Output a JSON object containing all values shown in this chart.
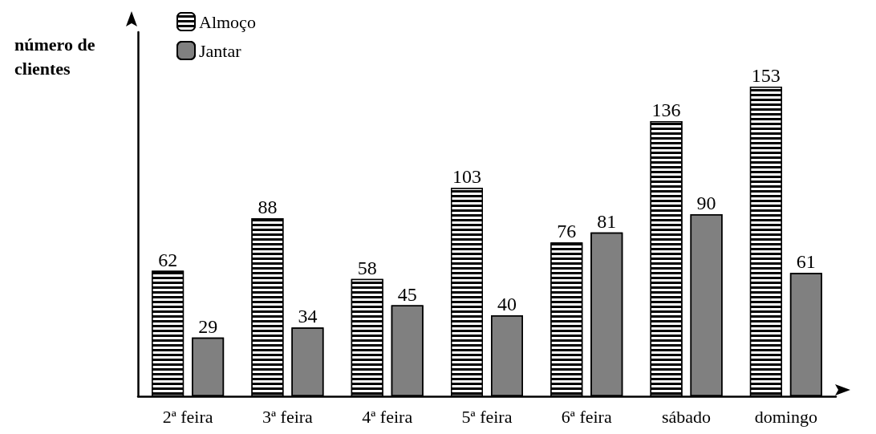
{
  "chart_data": {
    "type": "bar",
    "ylabel": "número de\nclientes",
    "categories": [
      "2ª feira",
      "3ª feira",
      "4ª feira",
      "5ª feira",
      "6ª feira",
      "sábado",
      "domingo"
    ],
    "series": [
      {
        "name": "Almoço",
        "color": "#000000",
        "values": [
          62,
          88,
          58,
          103,
          76,
          136,
          153
        ]
      },
      {
        "name": "Jantar",
        "color": "#808080",
        "values": [
          29,
          34,
          45,
          40,
          81,
          90,
          61
        ]
      }
    ],
    "data_labels": true,
    "tick_labels": "x",
    "grid": false,
    "legend": "top left"
  }
}
